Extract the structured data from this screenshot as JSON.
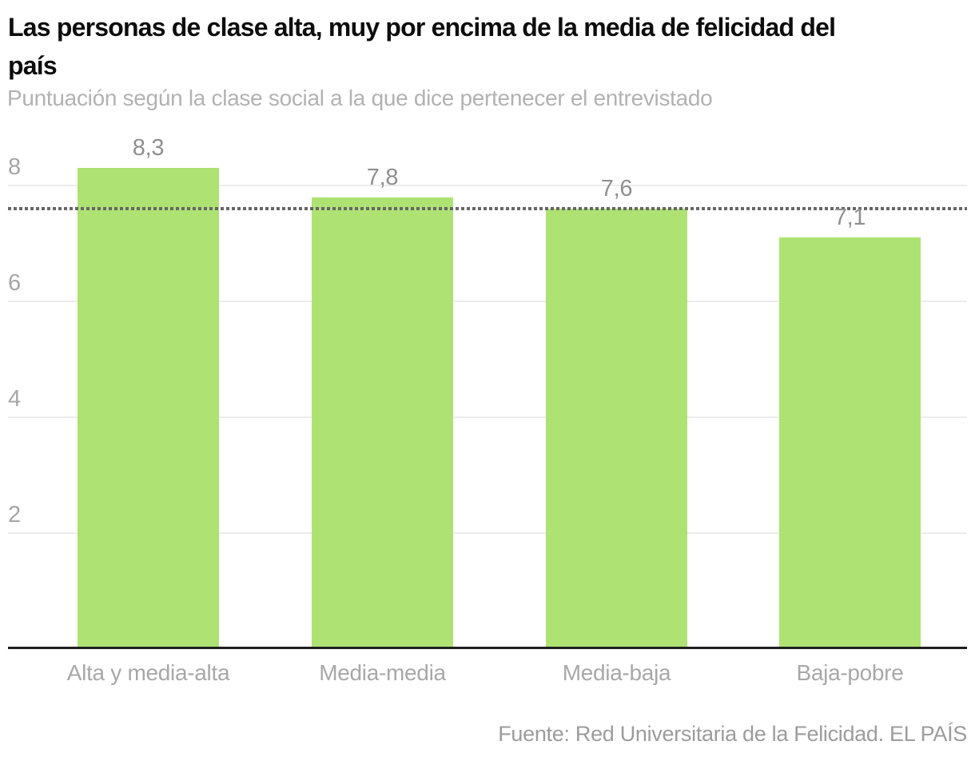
{
  "header": {
    "title_lines": [
      "Las personas de clase alta, muy por encima de la media de felicidad del",
      "país"
    ],
    "subtitle": "Puntuación según la clase social a la que dice pertenecer el entrevistado"
  },
  "chart_data": {
    "type": "bar",
    "categories": [
      "Alta y media-alta",
      "Media-media",
      "Media-baja",
      "Baja-pobre"
    ],
    "values": [
      8.3,
      7.8,
      7.6,
      7.1
    ],
    "value_labels": [
      "8,3",
      "7,8",
      "7,6",
      "7,1"
    ],
    "yticks": [
      2,
      4,
      6,
      8
    ],
    "ylim": [
      0,
      9
    ],
    "reference_line": {
      "value": 7.6
    },
    "title": "Las personas de clase alta, muy por encima de la media de felicidad del país",
    "xlabel": "",
    "ylabel": "",
    "grid": true,
    "legend": false,
    "colors": {
      "bar": "#aee273",
      "gridline": "#ececec",
      "axis_line": "#1f1f1f",
      "reference_line": "#666666",
      "tick_label": "#a6a6a6",
      "value_label": "#8f8f8f",
      "category_label": "#a8a8a8"
    }
  },
  "footer": {
    "source": "Fuente: Red Universitaria de la Felicidad. EL PAÍS"
  }
}
